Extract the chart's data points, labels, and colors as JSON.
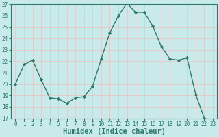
{
  "x": [
    0,
    1,
    2,
    3,
    4,
    5,
    6,
    7,
    8,
    9,
    10,
    11,
    12,
    13,
    14,
    15,
    16,
    17,
    18,
    19,
    20,
    21,
    22,
    23
  ],
  "y": [
    20,
    21.7,
    22.1,
    20.4,
    18.8,
    18.7,
    18.3,
    18.8,
    18.9,
    19.8,
    22.2,
    24.5,
    26.0,
    27.1,
    26.3,
    26.3,
    25.1,
    23.3,
    22.2,
    22.1,
    22.3,
    19.1,
    17.0,
    16.8
  ],
  "line_color": "#2a7a6a",
  "marker": "D",
  "marker_size": 2.2,
  "bg_color": "#c8eaea",
  "grid_color": "#e8c8c8",
  "xlabel": "Humidex (Indice chaleur)",
  "ylim": [
    17,
    27
  ],
  "xlim": [
    -0.5,
    23.5
  ],
  "yticks": [
    17,
    18,
    19,
    20,
    21,
    22,
    23,
    24,
    25,
    26,
    27
  ],
  "xticks": [
    0,
    1,
    2,
    3,
    4,
    5,
    6,
    7,
    8,
    9,
    10,
    11,
    12,
    13,
    14,
    15,
    16,
    17,
    18,
    19,
    20,
    21,
    22,
    23
  ],
  "tick_color": "#2a7a6a",
  "label_color": "#2a7a6a",
  "font_size": 5.5,
  "xlabel_fontsize": 7.5,
  "linewidth": 1.0
}
